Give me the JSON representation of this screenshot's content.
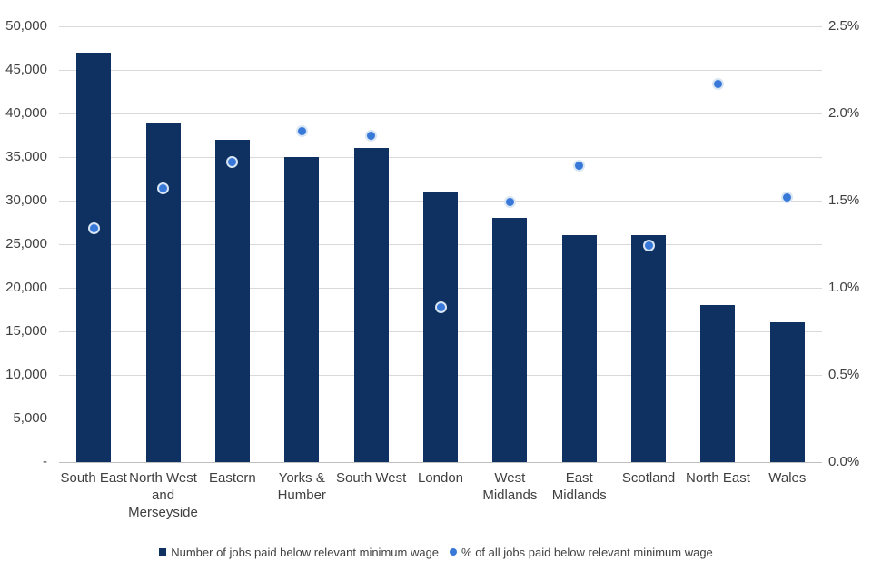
{
  "chart_data": {
    "type": "bar",
    "title": "",
    "categories": [
      "South East",
      "North West and Merseyside",
      "Eastern",
      "Yorks & Humber",
      "South West",
      "London",
      "West Midlands",
      "East Midlands",
      "Scotland",
      "North East",
      "Wales"
    ],
    "category_label_lines": [
      [
        "South East"
      ],
      [
        "North West",
        "and",
        "Merseyside"
      ],
      [
        "Eastern"
      ],
      [
        "Yorks &",
        "Humber"
      ],
      [
        "South West"
      ],
      [
        "London"
      ],
      [
        "West",
        "Midlands"
      ],
      [
        "East",
        "Midlands"
      ],
      [
        "Scotland"
      ],
      [
        "North East"
      ],
      [
        "Wales"
      ]
    ],
    "series": [
      {
        "name": "Number of jobs paid below relevant minimum wage",
        "type": "bar",
        "axis": "left",
        "color": "#0e3161",
        "values": [
          47000,
          39000,
          37000,
          35000,
          36000,
          31000,
          28000,
          26000,
          26000,
          18000,
          16000
        ]
      },
      {
        "name": "% of all jobs paid below relevant minimum wage",
        "type": "scatter",
        "axis": "right",
        "color": "#3878d8",
        "marker_ring_color": "#d8e5f4",
        "values": [
          1.34,
          1.57,
          1.72,
          1.9,
          1.87,
          0.89,
          1.49,
          1.7,
          1.24,
          2.17,
          1.52
        ]
      }
    ],
    "left_axis": {
      "min": 0,
      "max": 50000,
      "step": 5000,
      "tick_labels": [
        "-",
        "5,000",
        "10,000",
        "15,000",
        "20,000",
        "25,000",
        "30,000",
        "35,000",
        "40,000",
        "45,000",
        "50,000"
      ]
    },
    "right_axis": {
      "min": 0,
      "max": 2.5,
      "step": 0.5,
      "tick_labels": [
        "0.0%",
        "0.5%",
        "1.0%",
        "1.5%",
        "2.0%",
        "2.5%"
      ]
    },
    "grid": true,
    "legend_position": "bottom",
    "colors": {
      "gridline": "#d9d9d9",
      "axis_line": "#bfbfbf",
      "text": "#404040",
      "background": "#ffffff"
    }
  }
}
